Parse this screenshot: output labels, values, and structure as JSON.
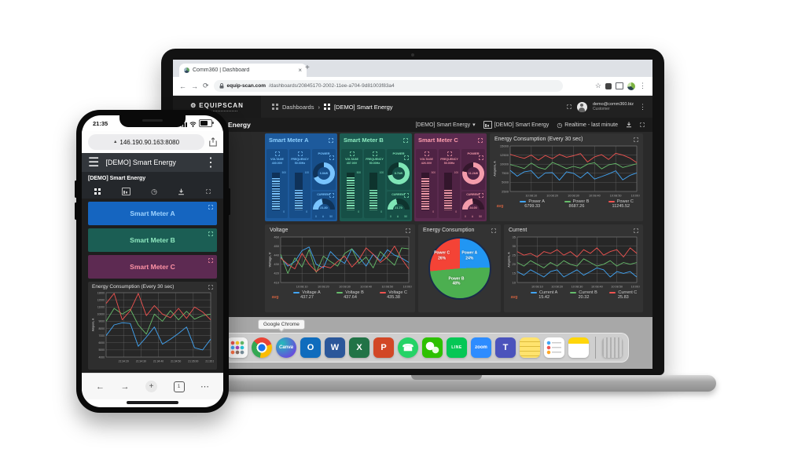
{
  "icons": {
    "back": "←",
    "forward": "→",
    "reload": "⟳",
    "star": "☆",
    "kebab": "⋮",
    "hamburger": "☰",
    "clock": "◷",
    "caret": "▾",
    "chevron": "›",
    "close": "×",
    "plus": "+",
    "ellipsis": "⋯",
    "secure_triangle": "▲",
    "gear": "⚙"
  },
  "phone": {
    "status_time": "21:35",
    "url": "146.190.90.163:8080",
    "header_title": "[DEMO] Smart Energy",
    "subtitle": "[DEMO] Smart Energy",
    "tab_count": "1",
    "meter_buttons": [
      {
        "label": "Smart Meter A",
        "bg": "#1565c0",
        "fg": "#9fd4ff"
      },
      {
        "label": "Smart Meter B",
        "bg": "#1b5e54",
        "fg": "#8fe9c0"
      },
      {
        "label": "Smart Meter C",
        "bg": "#5d2a52",
        "fg": "#ff93a6"
      }
    ],
    "chart": {
      "type": "line",
      "title": "Energy Consumption (Every 30 sec)",
      "ylabel": "Ampere, A",
      "ylim": [
        4000,
        13000
      ],
      "yticks": [
        4000,
        5000,
        6000,
        7000,
        8000,
        9000,
        10000,
        11000,
        12000,
        13000
      ],
      "xticks": [
        "21:34:20",
        "21:34:30",
        "21:34:40",
        "21:34:50",
        "21:35:00",
        "21:35:10"
      ],
      "series": [
        {
          "name": "Power A",
          "color": "#42a5f5",
          "values": [
            7000,
            8500,
            8800,
            8700,
            5500,
            6800,
            8200,
            5800,
            6500,
            7300,
            8200,
            5300,
            5000,
            6500
          ]
        },
        {
          "name": "Power B",
          "color": "#66bb6a",
          "values": [
            9000,
            10800,
            10000,
            10700,
            8500,
            7200,
            10000,
            9000,
            10500,
            9200,
            10400,
            9300,
            9800,
            10000
          ]
        },
        {
          "name": "Power C",
          "color": "#ef5350",
          "values": [
            11500,
            12900,
            9200,
            10500,
            12900,
            9800,
            11200,
            10000,
            9500,
            10800,
            9400,
            11000,
            10300,
            9200
          ]
        }
      ]
    }
  },
  "laptop": {
    "tab_title": "Comm360 | Dashboard",
    "url_host": "equip-scan.com",
    "url_path": "/dashboards/20845170-2002-11ee-a704-9d81003f83a4",
    "nav": {
      "logo": "EQUIPSCAN",
      "breadcrumb_root": "Dashboards",
      "breadcrumb_current": "[DEMO] Smart Energy",
      "user_email": "demo@comm360.biz",
      "user_role": "Customer"
    },
    "toolbar": {
      "title": "[DEMO] Smart Energy",
      "dashboard_select": "[DEMO] Smart Energy",
      "entity_label": "[DEMO] Smart Energy",
      "realtime_label": "Realtime - last minute"
    },
    "meters": [
      {
        "name": "Smart Meter A",
        "colors": {
          "bg": "#1d5a9c",
          "card": "#174e89",
          "accent": "#79c4ff",
          "title": "#8dd0ff"
        },
        "voltage": {
          "label": "VOLTAGE",
          "value": "430.00V",
          "min": "0",
          "max": "500",
          "pct": 86
        },
        "frequency": {
          "label": "FREQUENCY",
          "value": "50.00Hz",
          "min": "0",
          "max": "100",
          "pct": 55
        },
        "power": {
          "label": "POWER",
          "value": "6.8kW",
          "pct": 68
        },
        "current": {
          "label": "CURRENT",
          "value": "21.80",
          "min": "0",
          "unit": "A",
          "max": "50",
          "pct": 44
        }
      },
      {
        "name": "Smart Meter B",
        "colors": {
          "bg": "#1c5b51",
          "card": "#164f46",
          "accent": "#7fe5b6",
          "title": "#8ceac0"
        },
        "voltage": {
          "label": "VOLTAGE",
          "value": "437.00V",
          "min": "0",
          "max": "500",
          "pct": 87
        },
        "frequency": {
          "label": "FREQUENCY",
          "value": "50.00Hz",
          "min": "0",
          "max": "100",
          "pct": 55
        },
        "power": {
          "label": "POWER",
          "value": "8.7kW",
          "pct": 72
        },
        "current": {
          "label": "CURRENT",
          "value": "21.70",
          "min": "0",
          "unit": "A",
          "max": "50",
          "pct": 43
        }
      },
      {
        "name": "Smart Meter C",
        "colors": {
          "bg": "#5b2a4f",
          "card": "#4f2344",
          "accent": "#f49cab",
          "title": "#ff9eae"
        },
        "voltage": {
          "label": "VOLTAGE",
          "value": "426.00V",
          "min": "0",
          "max": "500",
          "pct": 85
        },
        "frequency": {
          "label": "FREQUENCY",
          "value": "50.00Hz",
          "min": "0",
          "max": "100",
          "pct": 55
        },
        "power": {
          "label": "POWER",
          "value": "11.2kW",
          "pct": 78
        },
        "current": {
          "label": "CURRENT",
          "value": "24.00",
          "min": "0",
          "unit": "A",
          "max": "50",
          "pct": 48
        }
      }
    ],
    "panels": {
      "energy": {
        "type": "line",
        "title": "Energy Consumption (Every 30 sec)",
        "ylabel": "Ampere, A",
        "ylim": [
          2500,
          15000
        ],
        "yticks": [
          2500,
          5000,
          7500,
          10000,
          12500,
          15000
        ],
        "xticks": [
          "10:08:10",
          "10:08:20",
          "10:08:30",
          "10:08:40",
          "10:08:50",
          "10:09:00"
        ],
        "avg_label": "avg",
        "series": [
          {
            "name": "Power A",
            "color": "#42a5f5",
            "avg": "6799.33",
            "values": [
              8300,
              6700,
              7900,
              8200,
              6100,
              7600,
              7700,
              5600,
              7900,
              7500,
              6200,
              7800,
              5900,
              6600,
              7300,
              8200,
              5700,
              6900,
              7600
            ]
          },
          {
            "name": "Power B",
            "color": "#66bb6a",
            "avg": "8687.26",
            "values": [
              9900,
              9400,
              8800,
              10300,
              9100,
              8600,
              10500,
              9700,
              8800,
              9400,
              8900,
              10000,
              10400,
              8700,
              9800,
              10200,
              9100,
              9600,
              10100
            ]
          },
          {
            "name": "Power C",
            "color": "#ef5350",
            "avg": "11245.52",
            "values": [
              12700,
              12100,
              11600,
              12500,
              11100,
              12400,
              11500,
              12700,
              11900,
              12300,
              12900,
              10600,
              12000,
              12600,
              11300,
              13000,
              12500,
              11700,
              10400
            ]
          }
        ]
      },
      "voltage": {
        "type": "line",
        "title": "Voltage",
        "ylabel": "Voltage, V",
        "ylim": [
          410,
          460
        ],
        "yticks": [
          410,
          420,
          430,
          440,
          450,
          460
        ],
        "xticks": [
          "10:08:10",
          "10:08:20",
          "10:08:30",
          "10:08:40",
          "10:08:50",
          "10:09:00"
        ],
        "avg_label": "avg",
        "series": [
          {
            "name": "Voltage A",
            "color": "#42a5f5",
            "avg": "437.27",
            "values": [
              438,
              428,
              433,
              445,
              449,
              430,
              426,
              444,
              436,
              431,
              447,
              438,
              428,
              441,
              434,
              446,
              440,
              437,
              432
            ]
          },
          {
            "name": "Voltage B",
            "color": "#66bb6a",
            "avg": "437.64",
            "values": [
              441,
              420,
              437,
              427,
              446,
              421,
              439,
              433,
              428,
              442,
              447,
              431,
              438,
              426,
              444,
              436,
              429,
              448,
              447
            ]
          },
          {
            "name": "Voltage C",
            "color": "#ef5350",
            "avg": "435.38",
            "values": [
              437,
              430,
              425,
              442,
              430,
              422,
              428,
              426,
              433,
              439,
              427,
              435,
              448,
              441,
              432,
              438,
              450,
              436,
              425
            ]
          }
        ]
      },
      "pie": {
        "type": "pie",
        "title": "Energy Consumption",
        "slices": [
          {
            "label": "Power A",
            "pct": "24%",
            "value": 24,
            "color": "#2196f3"
          },
          {
            "label": "Power B",
            "pct": "48%",
            "value": 48,
            "color": "#4caf50"
          },
          {
            "label": "Power C",
            "pct": "26%",
            "value": 26,
            "color": "#f44336"
          }
        ]
      },
      "current": {
        "type": "line",
        "title": "Current",
        "ylabel": "Ampere, A",
        "ylim": [
          10,
          35
        ],
        "yticks": [
          10,
          15,
          20,
          25,
          30,
          35
        ],
        "xticks": [
          "10:08:10",
          "10:08:20",
          "10:08:30",
          "10:08:40",
          "10:08:50",
          "10:09:00"
        ],
        "avg_label": "avg",
        "series": [
          {
            "name": "Current A",
            "color": "#42a5f5",
            "avg": "15.42",
            "values": [
              16,
              14,
              17,
              15,
              13,
              16,
              17,
              13,
              15,
              17,
              14,
              16,
              18,
              17,
              13,
              16,
              15,
              16,
              13
            ]
          },
          {
            "name": "Current B",
            "color": "#66bb6a",
            "avg": "20.32",
            "values": [
              21,
              19,
              22,
              20,
              18,
              21,
              19,
              22,
              20,
              19,
              23,
              21,
              19,
              20,
              22,
              19,
              21,
              20,
              21
            ]
          },
          {
            "name": "Current C",
            "color": "#ef5350",
            "avg": "25.83",
            "values": [
              27,
              25,
              26,
              24,
              27,
              26,
              28,
              25,
              27,
              24,
              28,
              26,
              29,
              25,
              27,
              28,
              24,
              29,
              26
            ]
          }
        ]
      }
    },
    "dock": {
      "tooltip": "Google Chrome",
      "items": [
        {
          "name": "app-store",
          "glyph": "A"
        },
        {
          "name": "launchpad",
          "glyph": ""
        },
        {
          "name": "chrome",
          "glyph": ""
        },
        {
          "name": "canva",
          "glyph": "Canva"
        },
        {
          "name": "outlook",
          "glyph": "O"
        },
        {
          "name": "word",
          "glyph": "W"
        },
        {
          "name": "excel",
          "glyph": "X"
        },
        {
          "name": "powerpoint",
          "glyph": "P"
        },
        {
          "name": "whatsapp",
          "glyph": "☎"
        },
        {
          "name": "wechat",
          "glyph": ""
        },
        {
          "name": "line",
          "glyph": "LINE"
        },
        {
          "name": "zoom",
          "glyph": "zoom"
        },
        {
          "name": "teams",
          "glyph": "T"
        },
        {
          "name": "stickies",
          "glyph": ""
        },
        {
          "name": "reminders",
          "glyph": ""
        },
        {
          "name": "notes",
          "glyph": ""
        },
        {
          "name": "trash",
          "glyph": ""
        }
      ]
    }
  }
}
